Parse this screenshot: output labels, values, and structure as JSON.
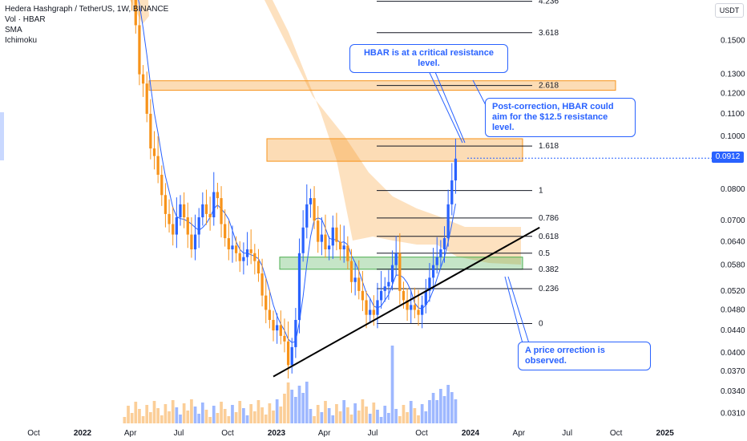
{
  "header": {
    "title": "Hedera Hashgraph / TetherUS, 1W, BINANCE",
    "indicators": [
      "Vol · HBAR",
      "SMA",
      "Ichimoku"
    ]
  },
  "axis": {
    "currency": "USDT",
    "current_price": "0.0912"
  },
  "colors": {
    "bull": "#2962ff",
    "bear": "#f7931a",
    "cloud": "#f7931a",
    "support": "#4caf50",
    "sma": "#2962ff"
  },
  "chart_data": {
    "type": "candlestick",
    "y_scale": "log",
    "ylim": [
      0.0295,
      0.178
    ],
    "y_ticks": [
      {
        "label": "0.1500",
        "value": 0.15
      },
      {
        "label": "0.1300",
        "value": 0.13
      },
      {
        "label": "0.1200",
        "value": 0.12
      },
      {
        "label": "0.1100",
        "value": 0.11
      },
      {
        "label": "0.1000",
        "value": 0.1
      },
      {
        "label": "0.0800",
        "value": 0.08
      },
      {
        "label": "0.0700",
        "value": 0.07
      },
      {
        "label": "0.0640",
        "value": 0.064
      },
      {
        "label": "0.0580",
        "value": 0.058
      },
      {
        "label": "0.0520",
        "value": 0.052
      },
      {
        "label": "0.0480",
        "value": 0.048
      },
      {
        "label": "0.0440",
        "value": 0.044
      },
      {
        "label": "0.0400",
        "value": 0.04
      },
      {
        "label": "0.0370",
        "value": 0.037
      },
      {
        "label": "0.0340",
        "value": 0.034
      },
      {
        "label": "0.0310",
        "value": 0.031
      }
    ],
    "x_ticks": [
      {
        "label": "Oct",
        "date": "2021-10-01",
        "bold": false
      },
      {
        "label": "2022",
        "date": "2022-01-01",
        "bold": true
      },
      {
        "label": "Apr",
        "date": "2022-04-01",
        "bold": false
      },
      {
        "label": "Jul",
        "date": "2022-07-01",
        "bold": false
      },
      {
        "label": "Oct",
        "date": "2022-10-01",
        "bold": false
      },
      {
        "label": "2023",
        "date": "2023-01-01",
        "bold": true
      },
      {
        "label": "Apr",
        "date": "2023-04-01",
        "bold": false
      },
      {
        "label": "Jul",
        "date": "2023-07-01",
        "bold": false
      },
      {
        "label": "Oct",
        "date": "2023-10-01",
        "bold": false
      },
      {
        "label": "2024",
        "date": "2024-01-01",
        "bold": true
      },
      {
        "label": "Apr",
        "date": "2024-04-01",
        "bold": false
      },
      {
        "label": "Jul",
        "date": "2024-07-01",
        "bold": false
      },
      {
        "label": "Oct",
        "date": "2024-10-01",
        "bold": false
      },
      {
        "label": "2025",
        "date": "2025-01-01",
        "bold": true
      }
    ],
    "weekly_closes": {
      "start": "2022-03-21",
      "values": [
        0.21,
        0.195,
        0.18,
        0.16,
        0.13,
        0.125,
        0.11,
        0.095,
        0.092,
        0.085,
        0.078,
        0.072,
        0.069,
        0.066,
        0.071,
        0.075,
        0.071,
        0.066,
        0.062,
        0.066,
        0.071,
        0.075,
        0.072,
        0.071,
        0.079,
        0.077,
        0.069,
        0.065,
        0.062,
        0.063,
        0.061,
        0.059,
        0.06,
        0.062,
        0.061,
        0.059,
        0.056,
        0.051,
        0.048,
        0.046,
        0.044,
        0.045,
        0.043,
        0.042,
        0.038,
        0.041,
        0.046,
        0.061,
        0.068,
        0.075,
        0.077,
        0.07,
        0.064,
        0.066,
        0.062,
        0.063,
        0.068,
        0.064,
        0.062,
        0.063,
        0.059,
        0.054,
        0.055,
        0.052,
        0.05,
        0.047,
        0.048,
        0.047,
        0.05,
        0.052,
        0.053,
        0.054,
        0.058,
        0.061,
        0.052,
        0.05,
        0.048,
        0.049,
        0.048,
        0.047,
        0.049,
        0.052,
        0.055,
        0.058,
        0.06,
        0.062,
        0.065,
        0.075,
        0.083,
        0.091
      ]
    },
    "fibonacci": [
      {
        "label": "0",
        "value": 0.0453
      },
      {
        "label": "0.236",
        "value": 0.0525
      },
      {
        "label": "0.382",
        "value": 0.057
      },
      {
        "label": "0.5",
        "value": 0.061
      },
      {
        "label": "0.618",
        "value": 0.0655
      },
      {
        "label": "0.786",
        "value": 0.0708
      },
      {
        "label": "1",
        "value": 0.0795
      },
      {
        "label": "1.618",
        "value": 0.096
      },
      {
        "label": "2.618",
        "value": 0.124
      },
      {
        "label": "3.618",
        "value": 0.155
      },
      {
        "label": "4.236",
        "value": 0.177
      }
    ],
    "zones": [
      {
        "name": "resistance-upper",
        "low": 0.1215,
        "high": 0.1265
      },
      {
        "name": "resistance",
        "low": 0.09,
        "high": 0.099
      },
      {
        "name": "support",
        "low": 0.057,
        "high": 0.06
      }
    ],
    "trendline": {
      "from": {
        "date": "2022-12-26",
        "price": 0.0362
      },
      "to": {
        "date": "2024-05-10",
        "price": 0.068
      }
    }
  },
  "annotations": {
    "resistance_note": "HBAR is at a critical resistance level.",
    "target_note": "Post-correction, HBAR could aim for the $12.5 resistance level.",
    "correction_note": "A price orrection is observed."
  }
}
